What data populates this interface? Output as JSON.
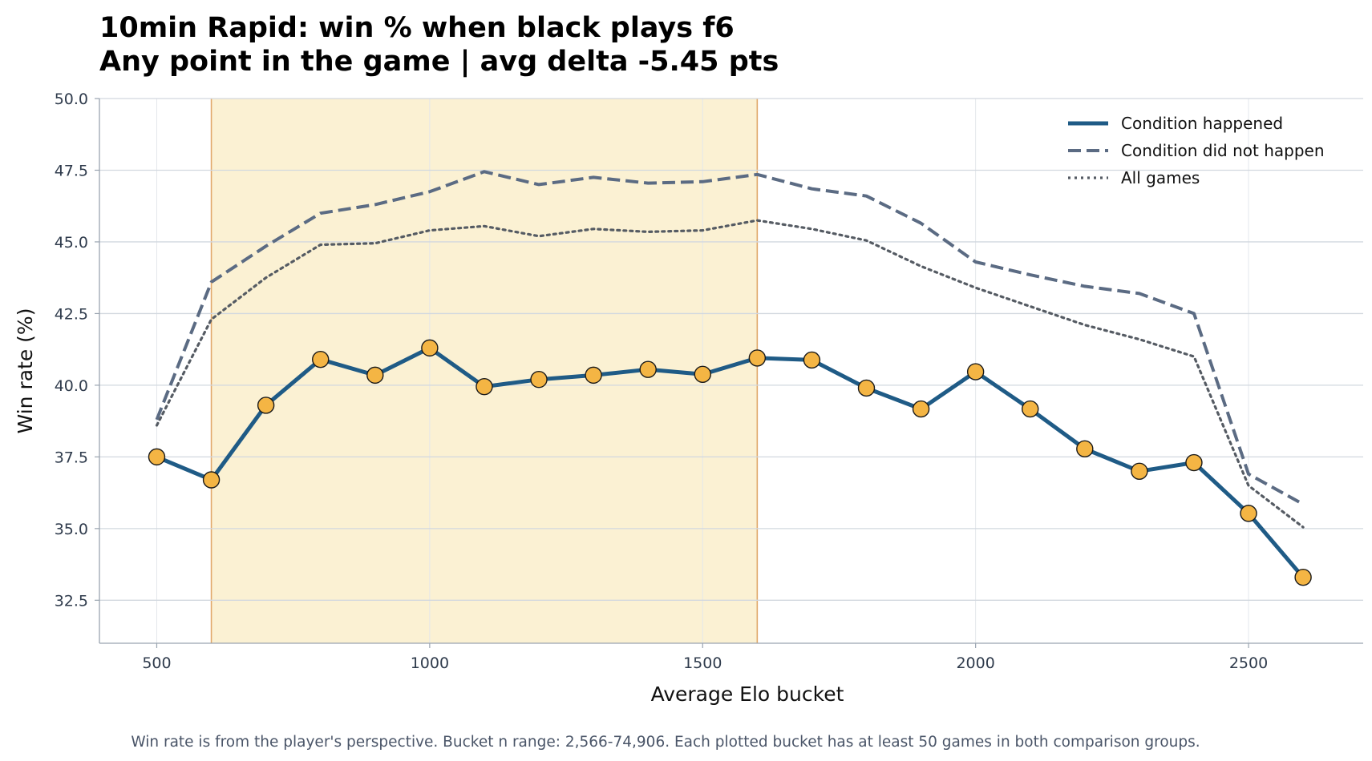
{
  "chart_data": {
    "type": "line",
    "title": "10min Rapid: win % when black plays f6",
    "subtitle": "Any point in the game | avg delta -5.45 pts",
    "xlabel": "Average Elo bucket",
    "ylabel": "Win rate (%)",
    "footnote": "Win rate is from the player's perspective. Bucket n range: 2,566-74,906. Each plotted bucket has at least 50 games in both comparison groups.",
    "xlim": [
      395,
      2710
    ],
    "ylim": [
      31,
      50
    ],
    "x_ticks": [
      500,
      1000,
      1500,
      2000,
      2500
    ],
    "y_ticks": [
      32.5,
      35.0,
      37.5,
      40.0,
      42.5,
      45.0,
      47.5,
      50.0
    ],
    "grid": true,
    "legend_position": "top-right",
    "highlight_band": {
      "x_start": 600,
      "x_end": 1600,
      "fill": "#fbf1d3",
      "edge": "#e0a86a"
    },
    "x": [
      500,
      600,
      700,
      800,
      900,
      1000,
      1100,
      1200,
      1300,
      1400,
      1500,
      1600,
      1700,
      1800,
      1900,
      2000,
      2100,
      2200,
      2300,
      2400,
      2500,
      2600
    ],
    "series": [
      {
        "name": "Condition happened",
        "style": "solid",
        "color": "#1f5b86",
        "marker_color": "#f4b544",
        "values": [
          37.5,
          36.7,
          39.3,
          40.9,
          40.35,
          41.3,
          39.95,
          40.2,
          40.35,
          40.55,
          40.38,
          40.95,
          40.88,
          39.9,
          39.17,
          40.47,
          39.17,
          37.78,
          37.0,
          37.3,
          35.53,
          33.3
        ]
      },
      {
        "name": "Condition did not happen",
        "style": "dashed",
        "color": "#5b6b83",
        "values": [
          38.8,
          43.6,
          44.85,
          46.0,
          46.3,
          46.75,
          47.45,
          47.0,
          47.25,
          47.05,
          47.1,
          47.35,
          46.85,
          46.6,
          45.65,
          44.3,
          43.85,
          43.45,
          43.2,
          42.5,
          36.9,
          35.85
        ]
      },
      {
        "name": "All games",
        "style": "dotted",
        "color": "#555b63",
        "values": [
          38.6,
          42.3,
          43.75,
          44.9,
          44.95,
          45.4,
          45.55,
          45.2,
          45.45,
          45.35,
          45.4,
          45.75,
          45.45,
          45.05,
          44.15,
          43.4,
          42.75,
          42.1,
          41.6,
          41.0,
          36.5,
          35.05
        ]
      }
    ]
  }
}
